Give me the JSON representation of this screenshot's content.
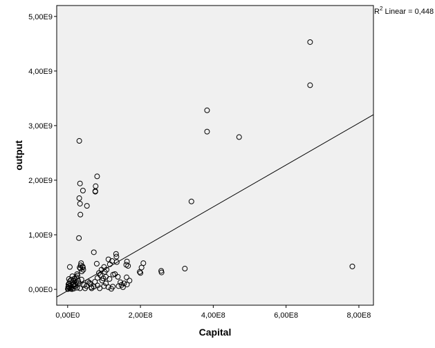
{
  "chart_data": {
    "type": "scatter",
    "xlabel": "Capital",
    "ylabel": "output",
    "xlim": [
      -30000000.0,
      840000000.0
    ],
    "ylim": [
      -290000000.0,
      5200000000.0
    ],
    "x_ticks": [
      {
        "value": 0,
        "label": "0,00E0"
      },
      {
        "value": 200000000.0,
        "label": "2,00E8"
      },
      {
        "value": 400000000.0,
        "label": "4,00E8"
      },
      {
        "value": 600000000.0,
        "label": "6,00E8"
      },
      {
        "value": 800000000.0,
        "label": "8,00E8"
      }
    ],
    "y_ticks": [
      {
        "value": 0,
        "label": "0,00E0"
      },
      {
        "value": 1000000000.0,
        "label": "1,00E9"
      },
      {
        "value": 2000000000.0,
        "label": "2,00E9"
      },
      {
        "value": 3000000000.0,
        "label": "3,00E9"
      },
      {
        "value": 4000000000.0,
        "label": "4,00E9"
      },
      {
        "value": 5000000000.0,
        "label": "5,00E9"
      }
    ],
    "grid": false,
    "fit_line": {
      "label": "R2 Linear = 0,448",
      "label_main": "R",
      "label_sup": "2",
      "label_rest": " Linear = 0,448",
      "points": [
        [
          -30000000.0,
          -140000000.0
        ],
        [
          840000000.0,
          3200000000.0
        ]
      ]
    },
    "colors": {
      "plot_background": "#f0f0f0",
      "marker_stroke": "#000000",
      "line": "#000000"
    },
    "points": [
      [
        666000000.0,
        4530000000.0
      ],
      [
        666000000.0,
        3740000000.0
      ],
      [
        383000000.0,
        3280000000.0
      ],
      [
        383000000.0,
        2890000000.0
      ],
      [
        471000000.0,
        2790000000.0
      ],
      [
        32000000.0,
        2720000000.0
      ],
      [
        81000000.0,
        2070000000.0
      ],
      [
        34000000.0,
        1940000000.0
      ],
      [
        77000000.0,
        1890000000.0
      ],
      [
        42000000.0,
        1810000000.0
      ],
      [
        76000000.0,
        1800000000.0
      ],
      [
        76000000.0,
        1790000000.0
      ],
      [
        32000000.0,
        1670000000.0
      ],
      [
        340000000.0,
        1610000000.0
      ],
      [
        34000000.0,
        1570000000.0
      ],
      [
        53000000.0,
        1530000000.0
      ],
      [
        35000000.0,
        1370000000.0
      ],
      [
        31000000.0,
        940000000.0
      ],
      [
        72000000.0,
        680000000.0
      ],
      [
        133000000.0,
        650000000.0
      ],
      [
        134000000.0,
        600000000.0
      ],
      [
        112000000.0,
        550000000.0
      ],
      [
        122000000.0,
        520000000.0
      ],
      [
        163000000.0,
        510000000.0
      ],
      [
        135000000.0,
        500000000.0
      ],
      [
        208000000.0,
        480000000.0
      ],
      [
        37000000.0,
        480000000.0
      ],
      [
        80000000.0,
        470000000.0
      ],
      [
        116000000.0,
        460000000.0
      ],
      [
        161000000.0,
        450000000.0
      ],
      [
        36000000.0,
        440000000.0
      ],
      [
        166000000.0,
        430000000.0
      ],
      [
        41000000.0,
        420000000.0
      ],
      [
        100000000.0,
        410000000.0
      ],
      [
        782000000.0,
        420000000.0
      ],
      [
        33000000.0,
        400000000.0
      ],
      [
        42000000.0,
        400000000.0
      ],
      [
        6000000.0,
        410000000.0
      ],
      [
        203000000.0,
        400000000.0
      ],
      [
        35000000.0,
        380000000.0
      ],
      [
        322000000.0,
        380000000.0
      ],
      [
        257000000.0,
        340000000.0
      ],
      [
        258000000.0,
        310000000.0
      ],
      [
        198000000.0,
        320000000.0
      ],
      [
        200000000.0,
        300000000.0
      ],
      [
        86000000.0,
        300000000.0
      ],
      [
        102000000.0,
        320000000.0
      ],
      [
        26000000.0,
        280000000.0
      ],
      [
        125000000.0,
        270000000.0
      ],
      [
        138000000.0,
        230000000.0
      ],
      [
        162000000.0,
        220000000.0
      ],
      [
        90000000.0,
        260000000.0
      ],
      [
        105000000.0,
        230000000.0
      ],
      [
        82000000.0,
        210000000.0
      ],
      [
        98000000.0,
        200000000.0
      ],
      [
        115000000.0,
        190000000.0
      ],
      [
        38000000.0,
        180000000.0
      ],
      [
        29000000.0,
        160000000.0
      ],
      [
        75000000.0,
        140000000.0
      ],
      [
        60000000.0,
        120000000.0
      ],
      [
        145000000.0,
        130000000.0
      ],
      [
        105000000.0,
        110000000.0
      ],
      [
        155000000.0,
        110000000.0
      ],
      [
        62000000.0,
        100000000.0
      ],
      [
        148000000.0,
        80000000.0
      ],
      [
        163000000.0,
        90000000.0
      ],
      [
        140000000.0,
        60000000.0
      ],
      [
        100000000.0,
        60000000.0
      ],
      [
        112000000.0,
        40000000.0
      ],
      [
        152000000.0,
        40000000.0
      ],
      [
        124000000.0,
        50000000.0
      ],
      [
        72000000.0,
        50000000.0
      ],
      [
        82000000.0,
        70000000.0
      ],
      [
        52000000.0,
        60000000.0
      ],
      [
        45000000.0,
        80000000.0
      ],
      [
        30000000.0,
        110000000.0
      ],
      [
        18000000.0,
        160000000.0
      ],
      [
        24000000.0,
        220000000.0
      ],
      [
        14000000.0,
        130000000.0
      ],
      [
        10000000.0,
        180000000.0
      ],
      [
        6000000.0,
        150000000.0
      ],
      [
        16000000.0,
        100000000.0
      ],
      [
        20000000.0,
        60000000.0
      ],
      [
        11000000.0,
        40000000.0
      ],
      [
        15000000.0,
        80000000.0
      ],
      [
        26000000.0,
        30000000.0
      ],
      [
        34000000.0,
        20000000.0
      ],
      [
        2200000.0,
        90000000.0
      ],
      [
        3000000.0,
        60000000.0
      ],
      [
        5000000.0,
        30000000.0
      ],
      [
        8000000.0,
        10000000.0
      ],
      [
        2000000.0,
        10000000.0
      ],
      [
        500000.0,
        5000000.0
      ],
      [
        1500000.0,
        40000000.0
      ],
      [
        4000000.0,
        110000000.0
      ],
      [
        7000000.0,
        70000000.0
      ],
      [
        9000000.0,
        20000000.0
      ],
      [
        12000000.0,
        5000000.0
      ],
      [
        17000000.0,
        15000000.0
      ],
      [
        21000000.0,
        90000000.0
      ],
      [
        13000000.0,
        240000000.0
      ],
      [
        27000000.0,
        250000000.0
      ],
      [
        39000000.0,
        330000000.0
      ],
      [
        43000000.0,
        360000000.0
      ],
      [
        56000000.0,
        140000000.0
      ],
      [
        66000000.0,
        20000000.0
      ],
      [
        88000000.0,
        20000000.0
      ],
      [
        95000000.0,
        160000000.0
      ],
      [
        120000000.0,
        10000000.0
      ],
      [
        130000000.0,
        280000000.0
      ],
      [
        107000000.0,
        360000000.0
      ],
      [
        93000000.0,
        360000000.0
      ],
      [
        170000000.0,
        160000000.0
      ],
      [
        65000000.0,
        40000000.0
      ],
      [
        48000000.0,
        20000000.0
      ],
      [
        23000000.0,
        130000000.0
      ],
      [
        3600000.0,
        190000000.0
      ],
      [
        19000000.0,
        200000000.0
      ]
    ]
  }
}
